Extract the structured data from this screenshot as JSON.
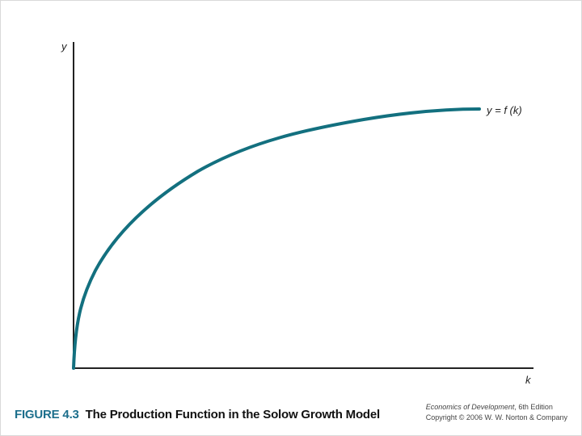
{
  "diagram": {
    "y_axis_label": "y",
    "x_axis_label": "k",
    "curve_label": "y = f (k)",
    "curve_color": "#13707f",
    "axis_color": "#222222",
    "shape": "concave, increasing, starts at origin and flattens"
  },
  "caption": {
    "figure_number": "FIGURE 4.3",
    "title": "The Production Function in the Solow Growth Model"
  },
  "credits": {
    "book_title": "Economics of Development",
    "edition": ", 6th Edition",
    "copyright": "Copyright © 2006 W. W. Norton & Company"
  }
}
